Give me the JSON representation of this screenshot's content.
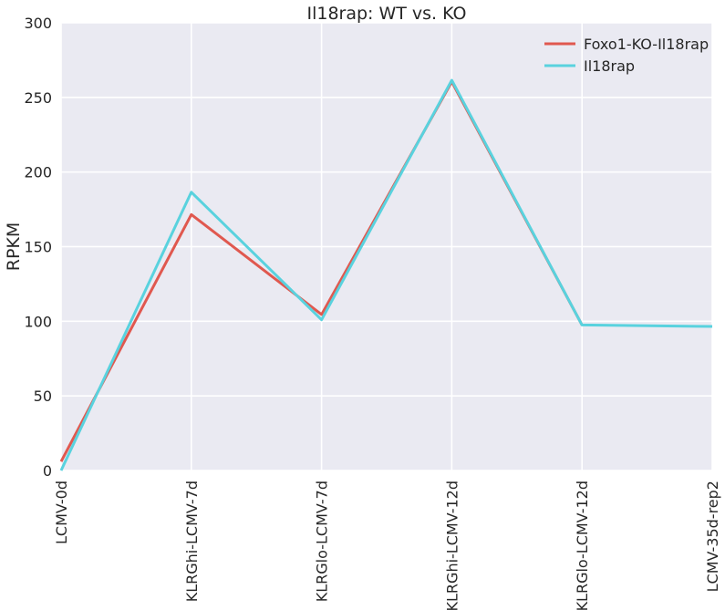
{
  "chart_data": {
    "type": "line",
    "title": "Il18rap: WT vs. KO",
    "xlabel": "",
    "ylabel": "RPKM",
    "categories": [
      "LCMV-0d",
      "KLRGhi-LCMV-7d",
      "KLRGlo-LCMV-7d",
      "KLRGhi-LCMV-12d",
      "KLRGlo-LCMV-12d",
      "LCMV-35d-rep2"
    ],
    "ylim": [
      0,
      300
    ],
    "yticks": [
      "0",
      "50",
      "100",
      "150",
      "200",
      "250",
      "300"
    ],
    "grid": true,
    "legend_position": "top-right",
    "background": "#eaeaf2",
    "series": [
      {
        "name": "Foxo1-KO-Il18rap",
        "color": "#e0584f",
        "values": [
          6,
          171.5,
          104.5,
          260.5,
          97.5,
          null
        ]
      },
      {
        "name": "Il18rap",
        "color": "#59d2de",
        "values": [
          0,
          186.5,
          101,
          261.5,
          97.5,
          96.5
        ]
      }
    ]
  }
}
